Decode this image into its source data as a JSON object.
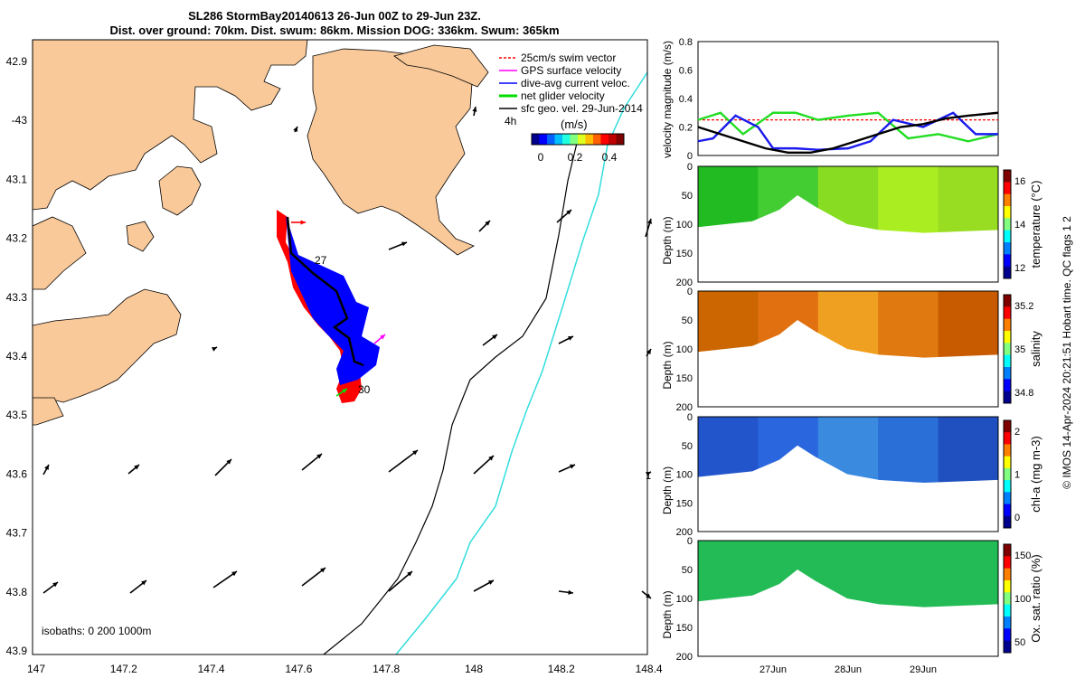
{
  "header": {
    "title_line1": "SL286 StormBay20140613 26-Jun 00Z to 29-Jun 23Z.",
    "title_line2": "Dist. over ground: 70km. Dist. swum: 86km. Mission DOG: 336km. Swum: 365km"
  },
  "map": {
    "lon_ticks": [
      "147",
      "147.2",
      "147.4",
      "147.6",
      "147.8",
      "148",
      "148.2",
      "148.4"
    ],
    "lat_ticks": [
      "42.9",
      "-43",
      "43.1",
      "43.2",
      "43.3",
      "43.4",
      "43.5",
      "43.6",
      "43.7",
      "43.8",
      "43.9"
    ],
    "isobaths_label": "isobaths: 0   200  1000m",
    "track_labels": [
      "27",
      "30"
    ],
    "legend": [
      {
        "label": "25cm/s swim vector",
        "color": "#ff0000"
      },
      {
        "label": "GPS surface velocity",
        "color": "#ff00ff"
      },
      {
        "label": "dive-avg current veloc.",
        "color": "#0000ff"
      },
      {
        "label": "net glider velocity",
        "color": "#00dd00"
      },
      {
        "label": "sfc geo. vel. 29-Jun-2014",
        "color": "#000000"
      }
    ],
    "legend_extra": "4h",
    "colorbar_label": "(m/s)",
    "colorbar_ticks": [
      "0",
      "0.2",
      "0.4"
    ],
    "colors": {
      "land": "#f9c99a",
      "track": "#ff0000",
      "current": "#0000ff",
      "iso200": "#000000",
      "iso1000": "#33dddd"
    }
  },
  "chart_data": [
    {
      "type": "line",
      "title": "",
      "ylabel": "velocity magnitude (m/s)",
      "ylim": [
        0,
        0.8
      ],
      "y_ticks": [
        "0",
        "0.2",
        "0.4",
        "0.6",
        "0.8"
      ],
      "x_ticks": [
        "27Jun",
        "28Jun",
        "29Jun"
      ],
      "series": [
        {
          "color": "#ff0000",
          "x": [
            0,
            1,
            2,
            3,
            4
          ],
          "y": [
            0.25,
            0.25,
            0.25,
            0.25,
            0.25
          ]
        },
        {
          "color": "#22dd22",
          "x": [
            0,
            0.3,
            0.6,
            1.0,
            1.3,
            1.6,
            2.0,
            2.4,
            2.8,
            3.2,
            3.6,
            4.0
          ],
          "y": [
            0.25,
            0.3,
            0.15,
            0.3,
            0.3,
            0.25,
            0.28,
            0.3,
            0.12,
            0.15,
            0.1,
            0.15
          ]
        },
        {
          "color": "#1a1aee",
          "x": [
            0,
            0.2,
            0.5,
            0.8,
            1.0,
            1.3,
            1.6,
            2.0,
            2.3,
            2.6,
            3.0,
            3.4,
            3.7,
            4.0
          ],
          "y": [
            0.1,
            0.12,
            0.28,
            0.2,
            0.05,
            0.05,
            0.04,
            0.05,
            0.1,
            0.25,
            0.2,
            0.3,
            0.15,
            0.15
          ]
        },
        {
          "color": "#000000",
          "x": [
            0,
            0.3,
            0.6,
            0.9,
            1.2,
            1.5,
            1.8,
            2.1,
            2.4,
            2.7,
            3.0,
            3.3,
            3.6,
            4.0
          ],
          "y": [
            0.2,
            0.15,
            0.1,
            0.05,
            0.02,
            0.02,
            0.05,
            0.1,
            0.15,
            0.2,
            0.22,
            0.26,
            0.28,
            0.3
          ]
        }
      ]
    },
    {
      "type": "heatmap",
      "ylabel": "Depth (m)",
      "colorbar_label": "temperature (°C)",
      "y_ticks": [
        "0",
        "50",
        "100",
        "150",
        "200"
      ],
      "colorbar_ticks": [
        "12",
        "14",
        "16"
      ],
      "palette": [
        "#22bb22",
        "#44cc33",
        "#88dd22",
        "#aaee22",
        "#99dd22"
      ]
    },
    {
      "type": "heatmap",
      "ylabel": "Depth (m)",
      "colorbar_label": "salinity",
      "y_ticks": [
        "0",
        "50",
        "100",
        "150",
        "200"
      ],
      "colorbar_ticks": [
        "34.8",
        "35",
        "35.2"
      ],
      "palette": [
        "#cc6600",
        "#e07010",
        "#f0a020",
        "#e07a10",
        "#c85a00"
      ]
    },
    {
      "type": "heatmap",
      "ylabel": "Depth (m)",
      "colorbar_label": "chl-a (mg m-3)",
      "y_ticks": [
        "0",
        "50",
        "100",
        "150",
        "200"
      ],
      "colorbar_ticks": [
        "0",
        "1",
        "2"
      ],
      "palette": [
        "#2255cc",
        "#2a66dd",
        "#3a8adf",
        "#2a6ed8",
        "#2050c0"
      ]
    },
    {
      "type": "heatmap",
      "ylabel": "Depth (m)",
      "colorbar_label": "Ox. sat. ratio (%)",
      "y_ticks": [
        "0",
        "50",
        "100",
        "150",
        "200"
      ],
      "colorbar_ticks": [
        "50",
        "100",
        "150"
      ],
      "palette": [
        "#22bb55",
        "#22bb55",
        "#22bb55",
        "#22bb55",
        "#22bb55"
      ]
    }
  ],
  "side_note": "© IMOS 14-Apr-2024 20:21:51 Hobart time. QC flags 1  2",
  "stray_label": "1"
}
